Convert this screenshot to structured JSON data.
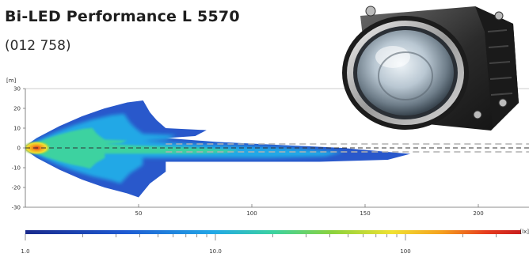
{
  "header": {
    "title": "Bi-LED Performance L 5570",
    "subtitle": "(012 758)"
  },
  "chart_data": {
    "type": "heatmap",
    "description_type": "isolux diagram",
    "ylabel": "[m]",
    "y_ticks": [
      30,
      20,
      10,
      0,
      -10,
      -20,
      -30
    ],
    "x_ticks": [
      50,
      100,
      150,
      200
    ],
    "xlim": [
      0,
      220
    ],
    "ylim": [
      -30,
      30
    ],
    "grid": false,
    "reference_lines": {
      "black_dashed_y": 0,
      "gray_dashed_y": [
        2,
        -2
      ]
    },
    "colorbar": {
      "unit": "[lx]",
      "scale": "log",
      "range": [
        1,
        300
      ],
      "tick_labels": [
        "1.0",
        "10.0",
        "100"
      ],
      "colors": [
        "#1a2a8c",
        "#1e5ad2",
        "#22a8e6",
        "#3cd2a0",
        "#8cd23c",
        "#f0e132",
        "#f5a01e",
        "#e63c1e",
        "#c81e1e"
      ]
    },
    "beam_outline": {
      "points": [
        [
          0,
          1
        ],
        [
          5,
          5
        ],
        [
          15,
          11
        ],
        [
          25,
          16
        ],
        [
          35,
          20
        ],
        [
          45,
          23
        ],
        [
          52,
          24
        ],
        [
          55,
          18
        ],
        [
          58,
          14
        ],
        [
          62,
          10
        ],
        [
          80,
          9
        ],
        [
          75,
          6
        ],
        [
          62,
          5
        ],
        [
          85,
          3
        ],
        [
          140,
          0
        ],
        [
          170,
          -3
        ],
        [
          160,
          -6
        ],
        [
          130,
          -7
        ],
        [
          90,
          -7
        ],
        [
          62,
          -7
        ],
        [
          62,
          -12
        ],
        [
          55,
          -18
        ],
        [
          50,
          -25
        ],
        [
          45,
          -23
        ],
        [
          35,
          -20
        ],
        [
          25,
          -16
        ],
        [
          15,
          -11
        ],
        [
          5,
          -5
        ],
        [
          0,
          -1
        ]
      ],
      "hot_spot": [
        5,
        0
      ]
    },
    "colors": {
      "accent": "#1e1e1e",
      "axis": "#555555",
      "dashed_black": "#333333",
      "dashed_gray": "#b0b0b0"
    }
  },
  "images": {
    "product": "projector-headlamp-photo"
  }
}
